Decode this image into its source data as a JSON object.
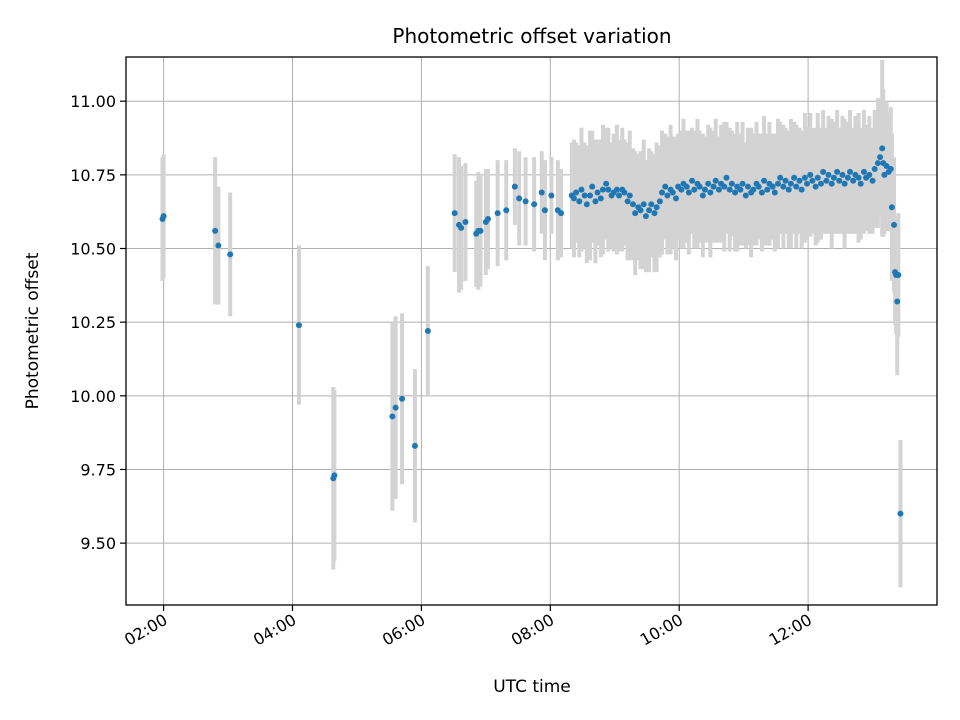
{
  "chart_data": {
    "type": "scatter",
    "title": "Photometric offset variation",
    "xlabel": "UTC time",
    "ylabel": "Photometric offset",
    "xlim": [
      "01:25",
      "14:00"
    ],
    "ylim": [
      9.29,
      11.15
    ],
    "grid": true,
    "x_ticks": [
      "02:00",
      "04:00",
      "06:00",
      "08:00",
      "10:00",
      "12:00"
    ],
    "y_ticks": [
      9.5,
      9.75,
      10.0,
      10.25,
      10.5,
      10.75,
      11.0
    ],
    "y_tick_labels": [
      "9.50",
      "9.75",
      "10.00",
      "10.25",
      "10.50",
      "10.75",
      "11.00"
    ],
    "colors": {
      "points": "#1f77b4",
      "errorbars": "#d3d3d3",
      "grid": "#b0b0b0"
    },
    "series": [
      {
        "x": [
          "01:59",
          "02:00",
          "02:48",
          "02:51",
          "03:02",
          "04:06",
          "04:38",
          "04:39",
          "05:33",
          "05:36",
          "05:42",
          "05:54",
          "06:06",
          "06:31",
          "06:35",
          "06:37",
          "06:41",
          "06:51",
          "06:53",
          "06:55",
          "07:00",
          "07:02",
          "07:11",
          "07:19",
          "07:27",
          "07:31",
          "07:37",
          "07:45",
          "07:52",
          "07:55",
          "08:01",
          "08:07",
          "08:10"
        ],
        "y": [
          10.6,
          10.61,
          10.56,
          10.51,
          10.48,
          10.24,
          9.72,
          9.73,
          9.93,
          9.96,
          9.99,
          9.83,
          10.22,
          10.62,
          10.58,
          10.57,
          10.59,
          10.55,
          10.56,
          10.56,
          10.59,
          10.6,
          10.62,
          10.63,
          10.71,
          10.67,
          10.66,
          10.65,
          10.69,
          10.63,
          10.68,
          10.63,
          10.62
        ],
        "err": [
          0.21,
          0.21,
          0.25,
          0.2,
          0.21,
          0.27,
          0.31,
          0.29,
          0.32,
          0.31,
          0.29,
          0.26,
          0.22,
          0.2,
          0.23,
          0.21,
          0.2,
          0.18,
          0.2,
          0.19,
          0.18,
          0.17,
          0.18,
          0.17,
          0.13,
          0.16,
          0.15,
          0.16,
          0.14,
          0.17,
          0.13,
          0.17,
          0.15
        ]
      },
      {
        "x": [
          "08:20",
          "08:22",
          "08:24",
          "08:27",
          "08:29",
          "08:32",
          "08:34",
          "08:37",
          "08:39",
          "08:42",
          "08:44",
          "08:47",
          "08:49",
          "08:52",
          "08:54",
          "08:57",
          "08:59",
          "09:02",
          "09:04",
          "09:07",
          "09:09",
          "09:12",
          "09:14",
          "09:17",
          "09:19",
          "09:22",
          "09:24",
          "09:27",
          "09:29",
          "09:32",
          "09:34",
          "09:37",
          "09:39",
          "09:42",
          "09:44",
          "09:47",
          "09:49",
          "09:52",
          "09:54",
          "09:57",
          "09:59",
          "10:02",
          "10:04",
          "10:07",
          "10:09",
          "10:12",
          "10:14",
          "10:17",
          "10:19",
          "10:22",
          "10:24",
          "10:27",
          "10:29",
          "10:32",
          "10:34",
          "10:37",
          "10:39",
          "10:42",
          "10:44",
          "10:47",
          "10:49",
          "10:52",
          "10:54",
          "10:57",
          "10:59",
          "11:02",
          "11:04",
          "11:07",
          "11:09",
          "11:12",
          "11:14",
          "11:17",
          "11:19",
          "11:22",
          "11:24",
          "11:27",
          "11:29",
          "11:32",
          "11:34",
          "11:37",
          "11:39",
          "11:42",
          "11:44",
          "11:47",
          "11:49",
          "11:52",
          "11:54",
          "11:57",
          "11:59",
          "12:02",
          "12:04",
          "12:07",
          "12:09",
          "12:12",
          "12:14",
          "12:17",
          "12:19",
          "12:22",
          "12:24",
          "12:27",
          "12:29",
          "12:32",
          "12:34",
          "12:37",
          "12:39",
          "12:42",
          "12:44",
          "12:47",
          "12:49",
          "12:52",
          "12:54",
          "12:57"
        ],
        "y": [
          10.68,
          10.67,
          10.69,
          10.66,
          10.7,
          10.68,
          10.65,
          10.68,
          10.71,
          10.66,
          10.69,
          10.67,
          10.7,
          10.72,
          10.7,
          10.68,
          10.69,
          10.7,
          10.68,
          10.7,
          10.69,
          10.66,
          10.68,
          10.65,
          10.62,
          10.64,
          10.63,
          10.65,
          10.61,
          10.63,
          10.65,
          10.62,
          10.64,
          10.66,
          10.69,
          10.71,
          10.68,
          10.7,
          10.69,
          10.67,
          10.71,
          10.7,
          10.72,
          10.71,
          10.69,
          10.73,
          10.7,
          10.72,
          10.71,
          10.68,
          10.7,
          10.72,
          10.69,
          10.71,
          10.73,
          10.7,
          10.72,
          10.71,
          10.74,
          10.7,
          10.72,
          10.69,
          10.71,
          10.7,
          10.72,
          10.68,
          10.71,
          10.69,
          10.7,
          10.72,
          10.71,
          10.69,
          10.73,
          10.7,
          10.72,
          10.71,
          10.69,
          10.72,
          10.74,
          10.71,
          10.73,
          10.7,
          10.72,
          10.74,
          10.71,
          10.73,
          10.7,
          10.74,
          10.72,
          10.75,
          10.73,
          10.71,
          10.74,
          10.72,
          10.76,
          10.73,
          10.75,
          10.72,
          10.74,
          10.76,
          10.73,
          10.75,
          10.72,
          10.74,
          10.76,
          10.73,
          10.75,
          10.74,
          10.72,
          10.76,
          10.74,
          10.75
        ],
        "err": [
          0.18,
          0.2,
          0.17,
          0.19,
          0.21,
          0.18,
          0.2,
          0.22,
          0.19,
          0.21,
          0.18,
          0.2,
          0.22,
          0.19,
          0.21,
          0.18,
          0.2,
          0.22,
          0.19,
          0.21,
          0.18,
          0.2,
          0.22,
          0.19,
          0.21,
          0.18,
          0.2,
          0.22,
          0.19,
          0.21,
          0.18,
          0.2,
          0.22,
          0.19,
          0.21,
          0.18,
          0.2,
          0.22,
          0.19,
          0.21,
          0.18,
          0.2,
          0.22,
          0.19,
          0.21,
          0.18,
          0.2,
          0.22,
          0.19,
          0.21,
          0.18,
          0.2,
          0.22,
          0.19,
          0.21,
          0.18,
          0.2,
          0.22,
          0.19,
          0.21,
          0.18,
          0.2,
          0.22,
          0.19,
          0.21,
          0.18,
          0.2,
          0.22,
          0.19,
          0.21,
          0.18,
          0.2,
          0.22,
          0.19,
          0.21,
          0.18,
          0.2,
          0.22,
          0.19,
          0.21,
          0.18,
          0.2,
          0.22,
          0.19,
          0.21,
          0.18,
          0.2,
          0.22,
          0.19,
          0.21,
          0.18,
          0.2,
          0.22,
          0.19,
          0.21,
          0.18,
          0.2,
          0.22,
          0.19,
          0.21,
          0.18,
          0.2,
          0.22,
          0.19,
          0.21,
          0.18,
          0.2,
          0.22,
          0.19,
          0.21,
          0.18,
          0.2
        ]
      },
      {
        "x": [
          "13:00",
          "13:02",
          "13:05",
          "13:07",
          "13:09",
          "13:10",
          "13:11",
          "13:13",
          "13:15",
          "13:17",
          "13:18",
          "13:20",
          "13:21",
          "13:22",
          "13:23",
          "13:24",
          "13:26"
        ],
        "y": [
          10.73,
          10.77,
          10.79,
          10.81,
          10.84,
          10.79,
          10.75,
          10.78,
          10.76,
          10.77,
          10.64,
          10.58,
          10.42,
          10.41,
          10.32,
          10.41,
          9.6
        ],
        "err": [
          0.18,
          0.2,
          0.22,
          0.2,
          0.3,
          0.25,
          0.2,
          0.22,
          0.2,
          0.21,
          0.25,
          0.23,
          0.18,
          0.2,
          0.25,
          0.21,
          0.25
        ]
      }
    ]
  }
}
